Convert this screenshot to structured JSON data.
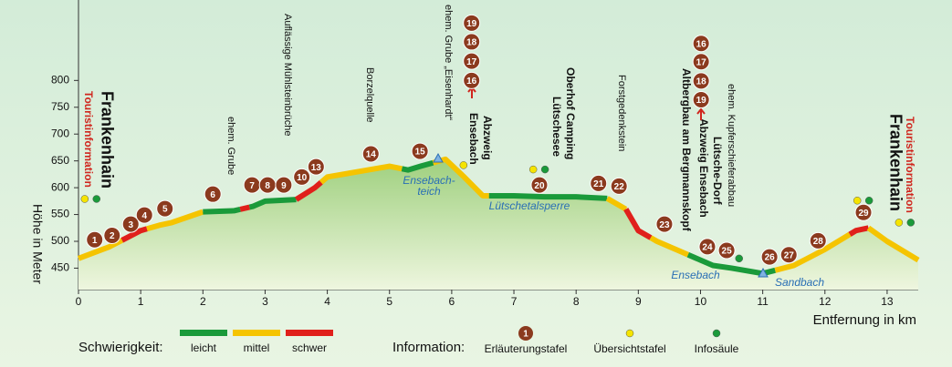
{
  "chart_data": {
    "type": "area",
    "y_label": "Höhe in Meter",
    "x_label": "Entfernung in km",
    "xlim": [
      0,
      13.5
    ],
    "ylim": [
      410,
      950
    ],
    "xticks": [
      0,
      1,
      2,
      3,
      4,
      5,
      6,
      7,
      8,
      9,
      10,
      11,
      12,
      13
    ],
    "yticks": [
      450,
      500,
      550,
      600,
      650,
      700,
      750,
      800
    ],
    "color": "#8fc46f",
    "x": [
      0,
      0.5,
      1,
      1.3,
      1.5,
      2,
      2.5,
      2.8,
      3,
      3.5,
      3.8,
      4,
      4.5,
      5,
      5.3,
      5.5,
      5.9,
      6.2,
      6.5,
      7,
      7.5,
      8,
      8.5,
      8.8,
      9,
      9.3,
      9.7,
      10,
      10.2,
      10.5,
      11,
      11.5,
      12,
      12.5,
      12.7,
      13,
      13.5
    ],
    "values": [
      468,
      490,
      520,
      530,
      535,
      555,
      557,
      565,
      575,
      578,
      600,
      620,
      630,
      640,
      633,
      640,
      653,
      620,
      585,
      585,
      583,
      583,
      580,
      560,
      520,
      500,
      480,
      465,
      455,
      450,
      440,
      455,
      485,
      520,
      525,
      500,
      465
    ],
    "segments": [
      {
        "from": 0,
        "to": 0.7,
        "color": "#f5c400"
      },
      {
        "from": 0.7,
        "to": 1.1,
        "color": "#e0201b"
      },
      {
        "from": 1.1,
        "to": 2.0,
        "color": "#f5c400"
      },
      {
        "from": 2.0,
        "to": 2.6,
        "color": "#1a9a3a"
      },
      {
        "from": 2.6,
        "to": 2.75,
        "color": "#e0201b"
      },
      {
        "from": 2.75,
        "to": 3.5,
        "color": "#1a9a3a"
      },
      {
        "from": 3.5,
        "to": 3.9,
        "color": "#e0201b"
      },
      {
        "from": 3.9,
        "to": 5.2,
        "color": "#f5c400"
      },
      {
        "from": 5.2,
        "to": 5.7,
        "color": "#1a9a3a"
      },
      {
        "from": 5.7,
        "to": 6.6,
        "color": "#f5c400"
      },
      {
        "from": 6.6,
        "to": 8.5,
        "color": "#1a9a3a"
      },
      {
        "from": 8.5,
        "to": 8.8,
        "color": "#f5c400"
      },
      {
        "from": 8.8,
        "to": 9.2,
        "color": "#e0201b"
      },
      {
        "from": 9.2,
        "to": 9.8,
        "color": "#f5c400"
      },
      {
        "from": 9.8,
        "to": 11.2,
        "color": "#1a9a3a"
      },
      {
        "from": 11.2,
        "to": 12.4,
        "color": "#f5c400"
      },
      {
        "from": 12.4,
        "to": 12.7,
        "color": "#e0201b"
      },
      {
        "from": 12.7,
        "to": 13.5,
        "color": "#f5c400"
      }
    ],
    "markers": [
      {
        "label": "1",
        "x": 0.26,
        "y": 503
      },
      {
        "label": "2",
        "x": 0.54,
        "y": 511
      },
      {
        "label": "3",
        "x": 0.84,
        "y": 532
      },
      {
        "label": "4",
        "x": 1.06,
        "y": 549
      },
      {
        "label": "5",
        "x": 1.39,
        "y": 561
      },
      {
        "label": "6",
        "x": 2.16,
        "y": 588
      },
      {
        "label": "7",
        "x": 2.79,
        "y": 605
      },
      {
        "label": "8",
        "x": 3.04,
        "y": 605
      },
      {
        "label": "9",
        "x": 3.3,
        "y": 605
      },
      {
        "label": "10",
        "x": 3.59,
        "y": 620
      },
      {
        "label": "13",
        "x": 3.82,
        "y": 639
      },
      {
        "label": "14",
        "x": 4.7,
        "y": 663
      },
      {
        "label": "15",
        "x": 5.49,
        "y": 668
      },
      {
        "label": "16",
        "x": 6.32,
        "y": 800
      },
      {
        "label": "17",
        "x": 6.32,
        "y": 836
      },
      {
        "label": "18",
        "x": 6.32,
        "y": 872
      },
      {
        "label": "19",
        "x": 6.32,
        "y": 907
      },
      {
        "label": "20",
        "x": 7.41,
        "y": 605
      },
      {
        "label": "21",
        "x": 8.36,
        "y": 608
      },
      {
        "label": "22",
        "x": 8.69,
        "y": 603
      },
      {
        "label": "23",
        "x": 9.42,
        "y": 532
      },
      {
        "label": "24",
        "x": 10.11,
        "y": 490
      },
      {
        "label": "25",
        "x": 10.42,
        "y": 483
      },
      {
        "label": "26",
        "x": 11.11,
        "y": 471
      },
      {
        "label": "27",
        "x": 11.42,
        "y": 475
      },
      {
        "label": "28",
        "x": 11.89,
        "y": 501
      },
      {
        "label": "29",
        "x": 12.62,
        "y": 554
      },
      {
        "label": "16",
        "x": 10.01,
        "y": 869
      },
      {
        "label": "17",
        "x": 10.01,
        "y": 835
      },
      {
        "label": "18",
        "x": 10.01,
        "y": 799
      },
      {
        "label": "19",
        "x": 10.01,
        "y": 764
      }
    ],
    "info_points": [
      {
        "x": 0.1,
        "y": 579,
        "color": "#f5e400"
      },
      {
        "x": 0.29,
        "y": 579,
        "color": "#1a9a3a"
      },
      {
        "x": 6.19,
        "y": 642,
        "color": "#f5e400"
      },
      {
        "x": 7.31,
        "y": 634,
        "color": "#f5e400"
      },
      {
        "x": 7.5,
        "y": 634,
        "color": "#1a9a3a"
      },
      {
        "x": 10.62,
        "y": 468,
        "color": "#1a9a3a"
      },
      {
        "x": 12.52,
        "y": 576,
        "color": "#f5e400"
      },
      {
        "x": 12.71,
        "y": 576,
        "color": "#1a9a3a"
      },
      {
        "x": 13.19,
        "y": 535,
        "color": "#f5e400"
      },
      {
        "x": 13.38,
        "y": 535,
        "color": "#1a9a3a"
      }
    ],
    "place_labels": [
      "Frankenhain",
      "Touristinformation",
      "ehem. Grube",
      "Auflässige Mühlsteinbrüche",
      "Borzelquelle",
      "ehem. Grube „Eisenhardt“",
      "Abzweig",
      "Ensebach",
      "Oberhof Camping",
      "Lütschesee",
      "Forstgedenkstein",
      "Altbergbau am Bergmannskopf",
      "Abzweig Ensebach",
      "Lütsche-Dorf",
      "ehem. Kupferschieferabbau",
      "Frankenhain",
      "Touristinformation"
    ],
    "water_labels": [
      "Ensebach-",
      "teich",
      "Lütschetalsperre",
      "Ensebach",
      "Sandbach"
    ],
    "legend": {
      "title": "Schwierigkeit:",
      "levels": [
        {
          "label": "leicht",
          "color": "#1a9a3a"
        },
        {
          "label": "mittel",
          "color": "#f5c400"
        },
        {
          "label": "schwer",
          "color": "#e0201b"
        }
      ]
    },
    "info_legend": {
      "title": "Information:",
      "sample": "1",
      "items": [
        {
          "label": "Erläuterungstafel",
          "color": "#8b3a1e"
        },
        {
          "label": "Übersichtstafel",
          "color": "#f5e400"
        },
        {
          "label": "Infosäule",
          "color": "#1a9a3a"
        }
      ]
    }
  }
}
